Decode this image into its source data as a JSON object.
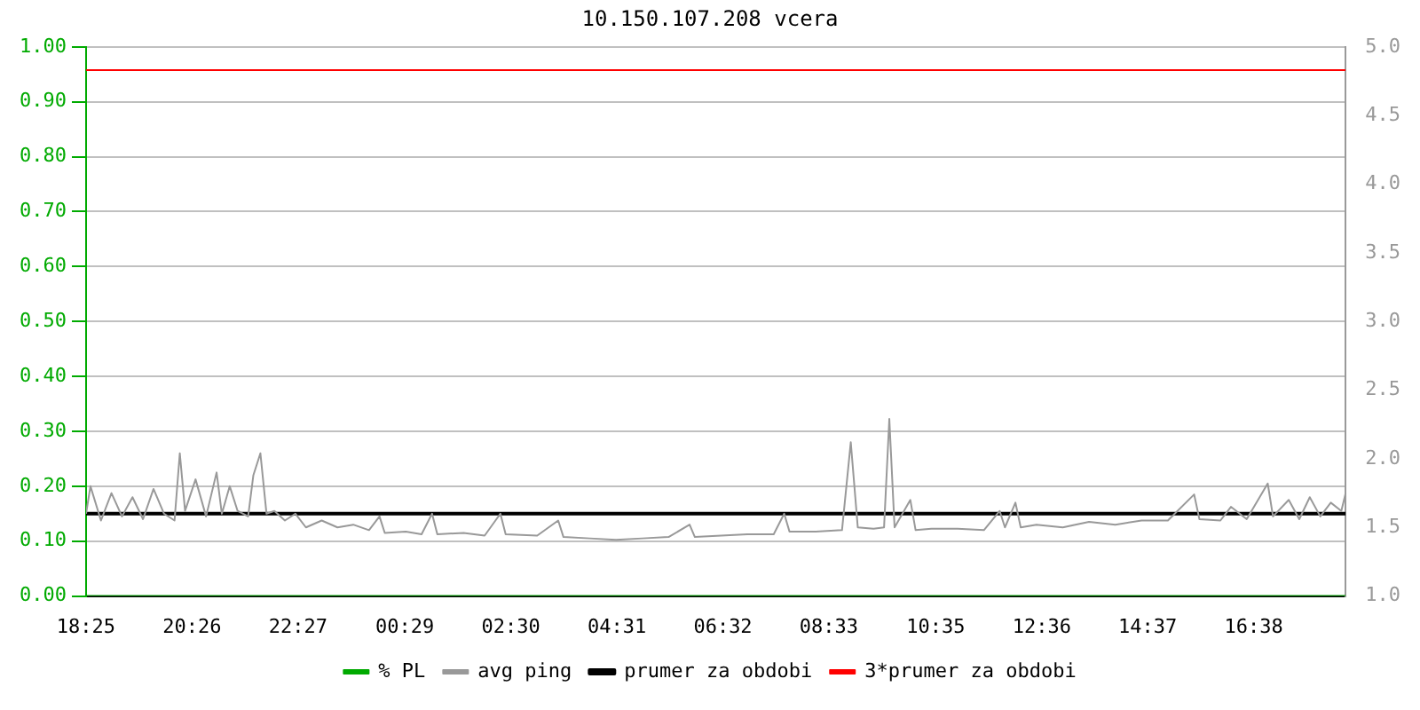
{
  "chart_data": {
    "type": "line",
    "title": "10.150.107.208 vcera",
    "xlim": [
      "--01-01T18:25",
      "--01-02T18:23"
    ],
    "xticks": [
      {
        "value": "--01-01T18:25",
        "label": "18:25"
      },
      {
        "value": "--01-01T20:26",
        "label": "20:26"
      },
      {
        "value": "--01-01T22:27",
        "label": "22:27"
      },
      {
        "value": "--01-02T00:29",
        "label": "00:29"
      },
      {
        "value": "--01-02T02:30",
        "label": "02:30"
      },
      {
        "value": "--01-02T04:31",
        "label": "04:31"
      },
      {
        "value": "--01-02T06:32",
        "label": "06:32"
      },
      {
        "value": "--01-02T08:33",
        "label": "08:33"
      },
      {
        "value": "--01-02T10:35",
        "label": "10:35"
      },
      {
        "value": "--01-02T12:36",
        "label": "12:36"
      },
      {
        "value": "--01-02T14:37",
        "label": "14:37"
      },
      {
        "value": "--01-02T16:38",
        "label": "16:38"
      }
    ],
    "ylim": [
      0,
      1
    ],
    "yticks": [
      {
        "value": 0,
        "label": "0.00"
      },
      {
        "value": 0.1,
        "label": "0.10"
      },
      {
        "value": 0.2,
        "label": "0.20"
      },
      {
        "value": 0.3,
        "label": "0.30"
      },
      {
        "value": 0.4,
        "label": "0.40"
      },
      {
        "value": 0.5,
        "label": "0.50"
      },
      {
        "value": 0.6,
        "label": "0.60"
      },
      {
        "value": 0.7,
        "label": "0.70"
      },
      {
        "value": 0.8,
        "label": "0.80"
      },
      {
        "value": 0.9,
        "label": "0.90"
      },
      {
        "value": 1,
        "label": "1.00"
      }
    ],
    "y2lim": [
      1,
      5
    ],
    "y2ticks": [
      {
        "value": 1,
        "label": "1.0"
      },
      {
        "value": 1.5,
        "label": "1.5"
      },
      {
        "value": 2,
        "label": "2.0"
      },
      {
        "value": 2.5,
        "label": "2.5"
      },
      {
        "value": 3,
        "label": "3.0"
      },
      {
        "value": 3.5,
        "label": "3.5"
      },
      {
        "value": 4,
        "label": "4.0"
      },
      {
        "value": 4.5,
        "label": "4.5"
      },
      {
        "value": 5,
        "label": "5.0"
      }
    ],
    "grid": "y",
    "legend": "bottom",
    "marker": "none",
    "series": [
      {
        "name": "% PL",
        "color": "#00aa00",
        "x": [
          "--01-01T18:25",
          "--01-02T18:23"
        ],
        "values": [
          0,
          0
        ]
      },
      {
        "name": "avg ping",
        "color": "#999999",
        "axis": "y2",
        "x": [
          "--01-01T18:25",
          "--01-01T18:30",
          "--01-01T18:42",
          "--01-01T18:54",
          "--01-01T19:06",
          "--01-01T19:18",
          "--01-01T19:30",
          "--01-01T19:42",
          "--01-01T19:54",
          "--01-01T20:06",
          "--01-01T20:12",
          "--01-01T20:18",
          "--01-01T20:30",
          "--01-01T20:42",
          "--01-01T20:54",
          "--01-01T21:00",
          "--01-01T21:09",
          "--01-01T21:18",
          "--01-01T21:30",
          "--01-01T21:36",
          "--01-01T21:44",
          "--01-01T21:51",
          "--01-01T22:00",
          "--01-01T22:12",
          "--01-01T22:24",
          "--01-01T22:36",
          "--01-01T22:54",
          "--01-01T23:12",
          "--01-01T23:30",
          "--01-01T23:48",
          "--01-02T00:00",
          "--01-02T00:06",
          "--01-02T00:30",
          "--01-02T00:48",
          "--01-02T01:00",
          "--01-02T01:06",
          "--01-02T01:36",
          "--01-02T02:00",
          "--01-02T02:18",
          "--01-02T02:24",
          "--01-02T03:00",
          "--01-02T03:24",
          "--01-02T03:30",
          "--01-02T04:00",
          "--01-02T04:30",
          "--01-02T05:00",
          "--01-02T05:30",
          "--01-02T05:54",
          "--01-02T06:00",
          "--01-02T06:30",
          "--01-02T07:00",
          "--01-02T07:30",
          "--01-02T07:42",
          "--01-02T07:48",
          "--01-02T08:18",
          "--01-02T08:48",
          "--01-02T08:58",
          "--01-02T09:06",
          "--01-02T09:24",
          "--01-02T09:36",
          "--01-02T09:42",
          "--01-02T09:48",
          "--01-02T10:06",
          "--01-02T10:12",
          "--01-02T10:30",
          "--01-02T11:00",
          "--01-02T11:30",
          "--01-02T11:48",
          "--01-02T11:54",
          "--01-02T12:06",
          "--01-02T12:12",
          "--01-02T12:30",
          "--01-02T13:00",
          "--01-02T13:30",
          "--01-02T14:00",
          "--01-02T14:30",
          "--01-02T15:00",
          "--01-02T15:30",
          "--01-02T15:36",
          "--01-02T16:00",
          "--01-02T16:12",
          "--01-02T16:30",
          "--01-02T16:54",
          "--01-02T17:00",
          "--01-02T17:18",
          "--01-02T17:30",
          "--01-02T17:42",
          "--01-02T17:54",
          "--01-02T18:06",
          "--01-02T18:18",
          "--01-02T18:23"
        ],
        "values": [
          1.6,
          1.8,
          1.55,
          1.75,
          1.58,
          1.72,
          1.56,
          1.78,
          1.6,
          1.55,
          2.04,
          1.62,
          1.85,
          1.58,
          1.9,
          1.6,
          1.8,
          1.62,
          1.58,
          1.88,
          2.04,
          1.6,
          1.62,
          1.55,
          1.6,
          1.5,
          1.55,
          1.5,
          1.52,
          1.48,
          1.58,
          1.46,
          1.47,
          1.45,
          1.6,
          1.45,
          1.46,
          1.44,
          1.6,
          1.45,
          1.44,
          1.55,
          1.43,
          1.42,
          1.41,
          1.42,
          1.43,
          1.52,
          1.43,
          1.44,
          1.45,
          1.45,
          1.6,
          1.47,
          1.47,
          1.48,
          2.12,
          1.5,
          1.49,
          1.5,
          2.29,
          1.5,
          1.7,
          1.48,
          1.49,
          1.49,
          1.48,
          1.62,
          1.5,
          1.68,
          1.5,
          1.52,
          1.5,
          1.54,
          1.52,
          1.55,
          1.55,
          1.74,
          1.56,
          1.55,
          1.65,
          1.56,
          1.82,
          1.58,
          1.7,
          1.56,
          1.72,
          1.58,
          1.68,
          1.62,
          1.75
        ]
      },
      {
        "name": "prumer za obdobi",
        "color": "#000000",
        "axis": "y2",
        "x": [
          "--01-01T18:25",
          "--01-02T18:23"
        ],
        "values": [
          1.6,
          1.6
        ]
      },
      {
        "name": "3*prumer za obdobi",
        "color": "#ff0000",
        "axis": "y2",
        "x": [
          "--01-01T18:25",
          "--01-02T18:23"
        ],
        "values": [
          4.83,
          4.83
        ]
      }
    ]
  }
}
